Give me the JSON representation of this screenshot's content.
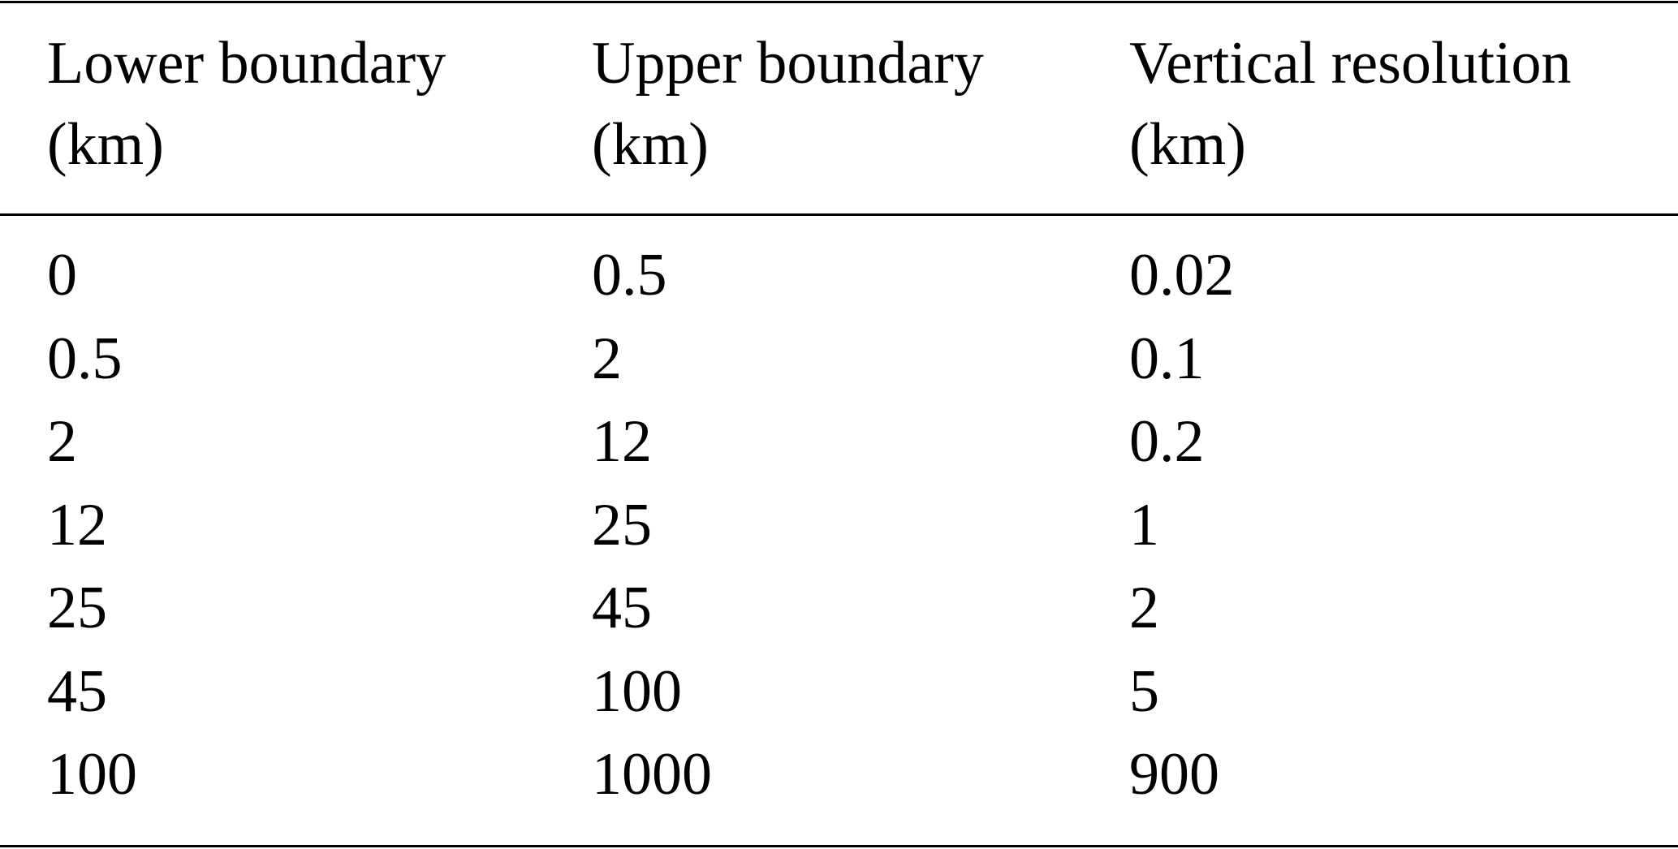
{
  "table": {
    "header": [
      "Lower boundary (km)",
      "Upper boundary (km)",
      "Vertical resolution (km)"
    ],
    "rows": [
      [
        0,
        0.5,
        0.02
      ],
      [
        0.5,
        2,
        0.1
      ],
      [
        2,
        12,
        0.2
      ],
      [
        12,
        25,
        1
      ],
      [
        25,
        45,
        2
      ],
      [
        45,
        100,
        5
      ],
      [
        100,
        1000,
        900
      ]
    ]
  }
}
